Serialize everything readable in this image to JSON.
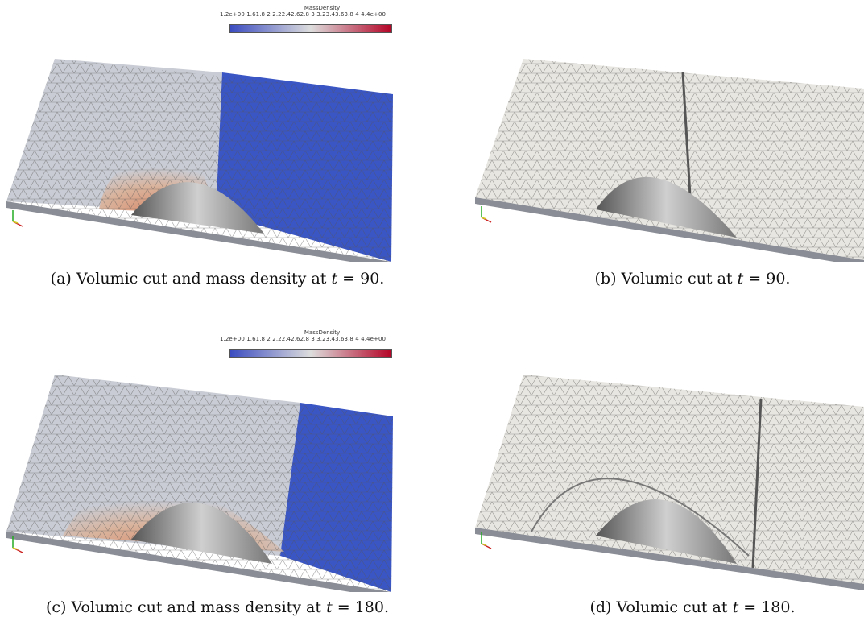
{
  "colorbar": {
    "title": "MassDensity",
    "ticks": "1.2e+00 1.61.8  2  2.22.42.62.8  3  3.23.43.63.8  4    4.4e+00",
    "low_color": "#3b4cc0",
    "mid_color": "#dddddd",
    "high_color": "#b40426"
  },
  "panels": [
    {
      "id": "a",
      "colored": true,
      "time": "90",
      "caption": {
        "prefix": "(a) Volumic cut and mass density at ",
        "var": "t",
        "eq": " = 90."
      }
    },
    {
      "id": "b",
      "colored": false,
      "time": "90",
      "caption": {
        "prefix": "(b) Volumic cut at ",
        "var": "t",
        "eq": " = 90."
      }
    },
    {
      "id": "c",
      "colored": true,
      "time": "180",
      "caption": {
        "prefix": "(c) Volumic cut and mass density at ",
        "var": "t",
        "eq": " = 180."
      }
    },
    {
      "id": "d",
      "colored": false,
      "time": "180",
      "caption": {
        "prefix": "(d) Volumic cut at ",
        "var": "t",
        "eq": " = 180."
      }
    }
  ],
  "colors": {
    "mesh_gray": "#c9ccd4",
    "mesh_light": "#e8e6e0",
    "blue": "#3a55c4",
    "orange": "#d98a6a",
    "edge": "#555555"
  }
}
